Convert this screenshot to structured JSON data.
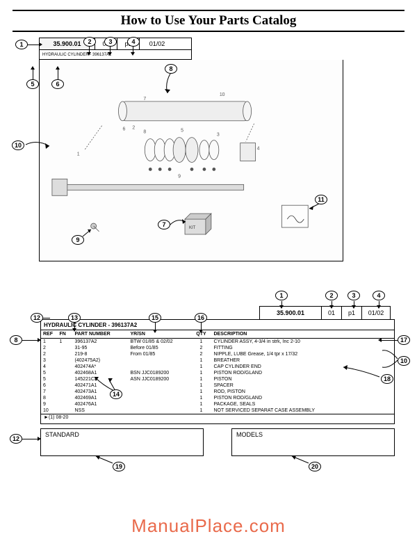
{
  "page_title": "How to Use Your Parts Catalog",
  "top_tabs": {
    "code": "35.900.01",
    "c2": "01",
    "c3": "p1",
    "c4": "01/02"
  },
  "top_subtitle": "HYDRAULIC CYLINDER - 396137A2",
  "diagram_refs": [
    "1",
    "2",
    "3",
    "4",
    "5",
    "6",
    "7",
    "8",
    "9",
    "10",
    "11"
  ],
  "bottom_tabs": {
    "code": "35.900.01",
    "c2": "01",
    "c3": "p1",
    "c4": "01/02"
  },
  "table_title": "HYDRAULIC CYLINDER - 396137A2",
  "columns": {
    "ref": "REF",
    "fn": "FN",
    "pn": "PART NUMBER",
    "yrsn": "YR/SN",
    "qty": "QTY",
    "desc": "DESCRIPTION"
  },
  "rows": [
    {
      "ref": "1",
      "fn": "1",
      "pn": "396137A2",
      "yrsn": "BTW 01/85 & 02/02",
      "qty": "1",
      "desc": "CYLINDER ASSY, 4-3/4 in strk, Inc 2-10"
    },
    {
      "ref": "2",
      "fn": "",
      "pn": "31-95",
      "yrsn": "Before 01/85",
      "qty": "2",
      "desc": "FITTING"
    },
    {
      "ref": "2",
      "fn": "",
      "pn": "219-8",
      "yrsn": "From 01/85",
      "qty": "2",
      "desc": "NIPPLE, LUBE Grease, 1/4 tpr x 17/32"
    },
    {
      "ref": "3",
      "fn": "",
      "pn": "(402475A2)",
      "yrsn": "",
      "qty": "1",
      "desc": "BREATHER"
    },
    {
      "ref": "4",
      "fn": "",
      "pn": "402474A*",
      "yrsn": "",
      "qty": "1",
      "desc": "CAP CYLINDER END"
    },
    {
      "ref": "5",
      "fn": "",
      "pn": "402468A1",
      "yrsn": "BSN JJC0189200",
      "qty": "1",
      "desc": "PISTON ROD/GLAND"
    },
    {
      "ref": "5",
      "fn": "",
      "pn": "145221C3",
      "yrsn": "ASN JJC0189200",
      "qty": "1",
      "desc": "PISTON"
    },
    {
      "ref": "6",
      "fn": "",
      "pn": "402471A1",
      "yrsn": "",
      "qty": "1",
      "desc": "SPACER"
    },
    {
      "ref": "7",
      "fn": "",
      "pn": "402473A1",
      "yrsn": "",
      "qty": "1",
      "desc": "ROD, PISTON"
    },
    {
      "ref": "8",
      "fn": "",
      "pn": "402469A1",
      "yrsn": "",
      "qty": "1",
      "desc": "PISTON ROD/GLAND"
    },
    {
      "ref": "9",
      "fn": "",
      "pn": "402476A1",
      "yrsn": "",
      "qty": "1",
      "desc": "PACKAGE, SEALS"
    },
    {
      "ref": "10",
      "fn": "",
      "pn": "NSS",
      "yrsn": "",
      "qty": "1",
      "desc": "NOT SERVICED SEPARAT CASE ASSEMBLY"
    }
  ],
  "table_foot": "(1)   08-20",
  "std_label": "STANDARD",
  "models_label": "MODELS",
  "watermark": "ManualPlace.com",
  "callouts": {
    "top": [
      "1",
      "2",
      "3",
      "4",
      "5",
      "6",
      "7",
      "8",
      "9",
      "10",
      "11"
    ],
    "bottom": [
      "1",
      "2",
      "3",
      "4",
      "8",
      "10",
      "12",
      "13",
      "14",
      "15",
      "16",
      "17",
      "18",
      "19",
      "20"
    ]
  },
  "colors": {
    "line": "#000000",
    "bg": "#ffffff",
    "watermark": "#e96a4b"
  }
}
